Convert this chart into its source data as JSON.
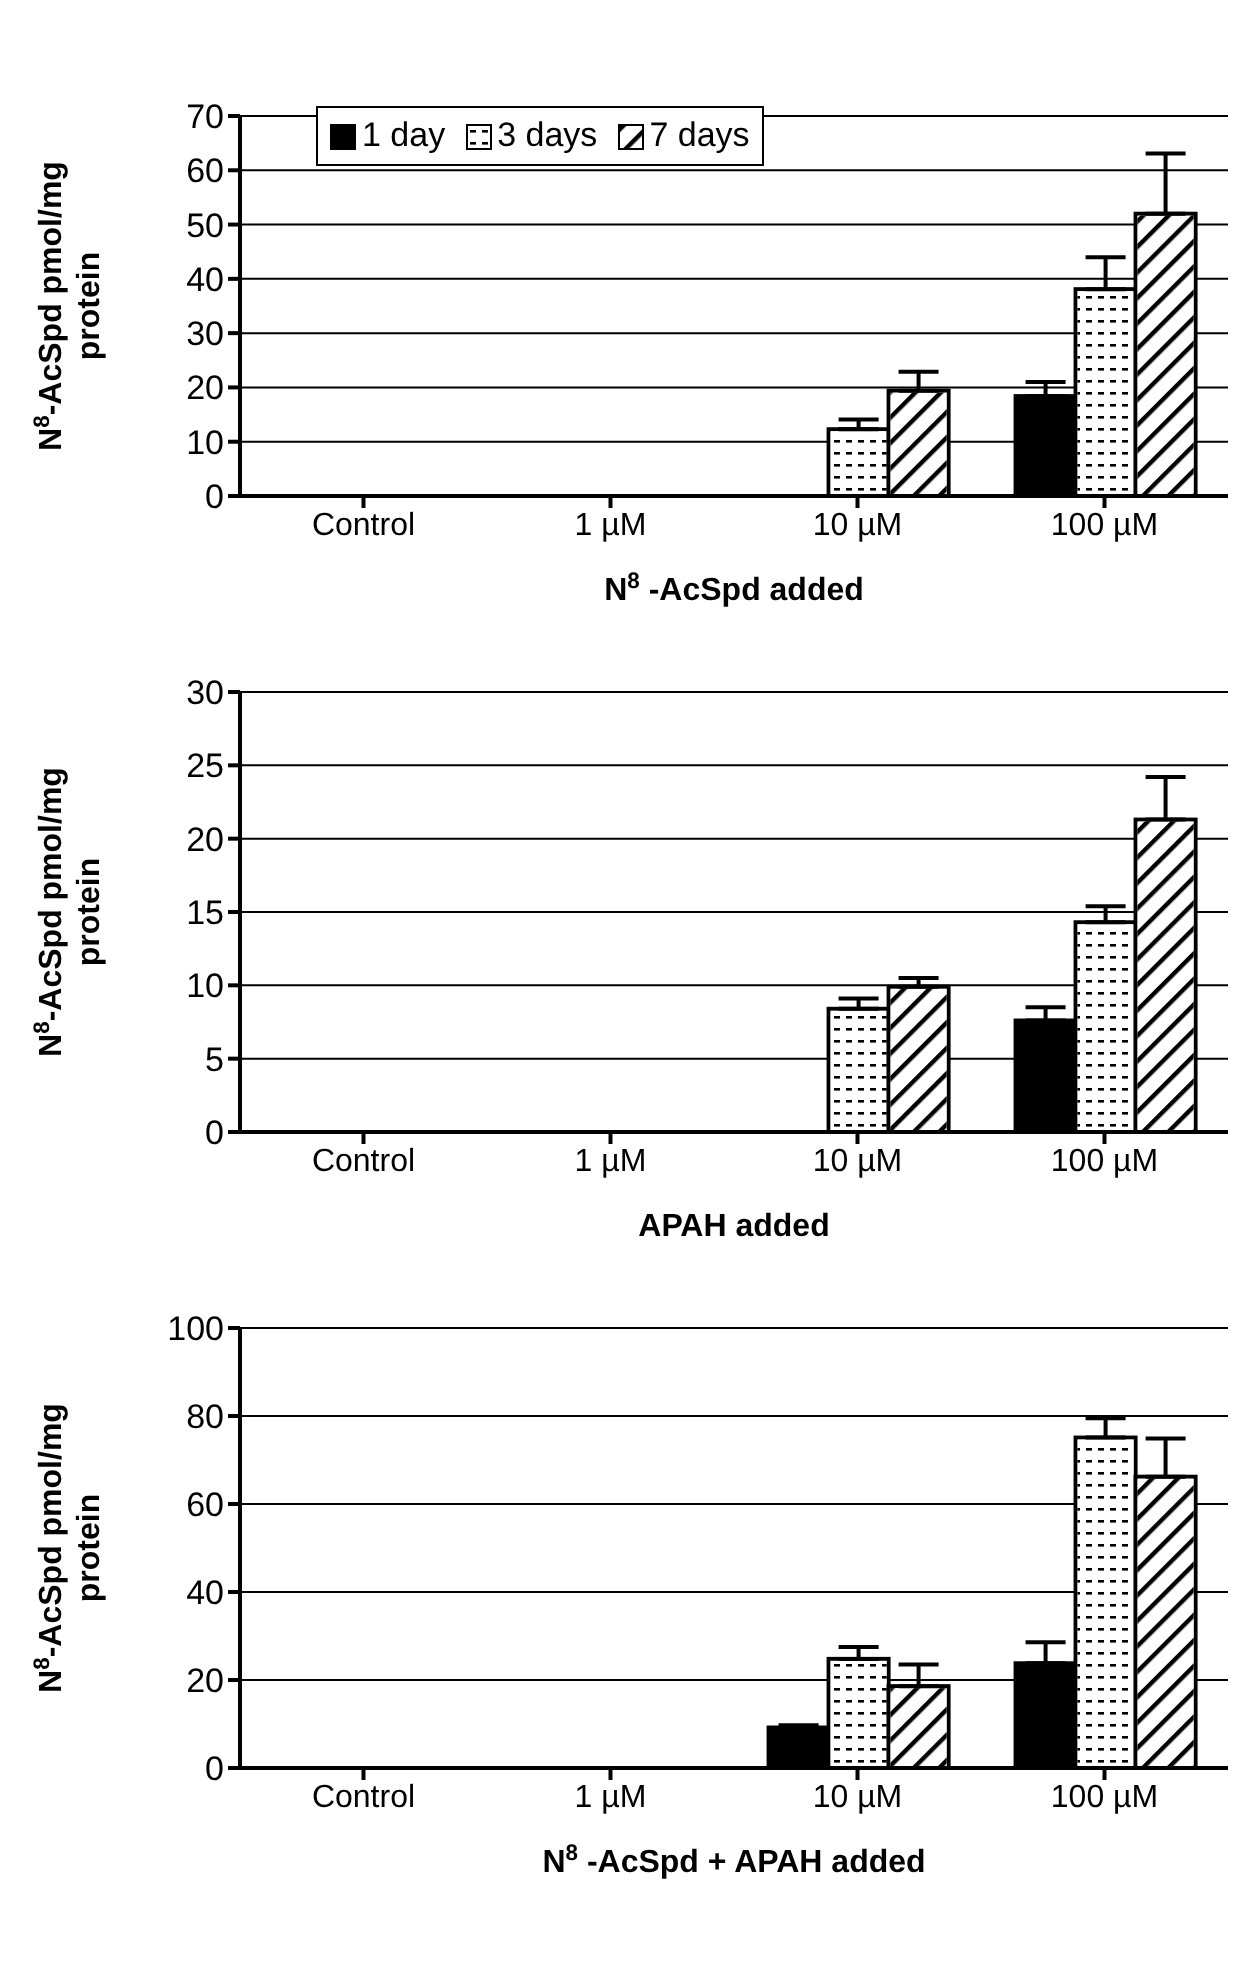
{
  "chart_data": [
    {
      "type": "bar",
      "categories": [
        "Control",
        "1 µM",
        "10 µM",
        "100 µM"
      ],
      "xlabel": "N$^{8}$ -AcSpd added",
      "ylabel": "N$^{8}$-AcSpd pmol/mg protein",
      "ylim": [
        0,
        70
      ],
      "yticks": [
        0,
        10,
        20,
        30,
        40,
        50,
        60,
        70
      ],
      "grid": "y",
      "legend": "top left",
      "series": [
        {
          "name": "1 day",
          "color": "#000000",
          "values": [
            null,
            null,
            null,
            18.4
          ],
          "errors": [
            null,
            null,
            null,
            [
              18.4,
              21.0
            ]
          ]
        },
        {
          "name": "3 days",
          "color": "#ffffff",
          "values": [
            null,
            null,
            12.3,
            38.1
          ],
          "errors": [
            null,
            null,
            [
              12.3,
              14.1
            ],
            [
              38.1,
              44.0
            ]
          ]
        },
        {
          "name": "7 days",
          "color": "#ffffff",
          "values": [
            null,
            null,
            19.4,
            52.0
          ],
          "errors": [
            null,
            null,
            [
              19.4,
              22.9
            ],
            [
              52.0,
              63.1
            ]
          ]
        }
      ]
    },
    {
      "type": "bar",
      "categories": [
        "Control",
        "1 µM",
        "10 µM",
        "100 µM"
      ],
      "xlabel": "APAH added",
      "ylabel": "N$^{8}$-AcSpd pmol/mg protein",
      "ylim": [
        0,
        30
      ],
      "yticks": [
        0,
        5,
        10,
        15,
        20,
        25,
        30
      ],
      "grid": "y",
      "series": [
        {
          "color": "#000000",
          "values": [
            null,
            null,
            null,
            7.6
          ],
          "errors": [
            null,
            null,
            null,
            [
              7.6,
              8.5
            ]
          ]
        },
        {
          "color": "#ffffff",
          "values": [
            null,
            null,
            8.4,
            14.3
          ],
          "errors": [
            null,
            null,
            [
              8.4,
              9.1
            ],
            [
              14.3,
              15.4
            ]
          ]
        },
        {
          "color": "#ffffff",
          "values": [
            null,
            null,
            9.9,
            21.3
          ],
          "errors": [
            null,
            null,
            [
              9.9,
              10.5
            ],
            [
              21.3,
              24.2
            ]
          ]
        }
      ]
    },
    {
      "type": "bar",
      "categories": [
        "Control",
        "1 µM",
        "10 µM",
        "100 µM"
      ],
      "xlabel": "N$^{8}$ -AcSpd + APAH added",
      "ylabel": "N$^{8}$-AcSpd pmol/mg protein",
      "ylim": [
        0,
        100
      ],
      "yticks": [
        0,
        20,
        40,
        60,
        80,
        100
      ],
      "grid": "y",
      "series": [
        {
          "color": "#000000",
          "values": [
            null,
            null,
            9.2,
            23.8
          ],
          "errors": [
            null,
            null,
            [
              9.2,
              9.7
            ],
            [
              23.8,
              28.6
            ]
          ]
        },
        {
          "color": "#ffffff",
          "values": [
            null,
            null,
            24.8,
            75.1
          ],
          "errors": [
            null,
            null,
            [
              24.8,
              27.5
            ],
            [
              75.1,
              79.5
            ]
          ]
        },
        {
          "color": "#ffffff",
          "values": [
            null,
            null,
            18.6,
            66.2
          ],
          "errors": [
            null,
            null,
            [
              18.6,
              23.5
            ],
            [
              66.2,
              74.9
            ]
          ]
        }
      ]
    }
  ]
}
